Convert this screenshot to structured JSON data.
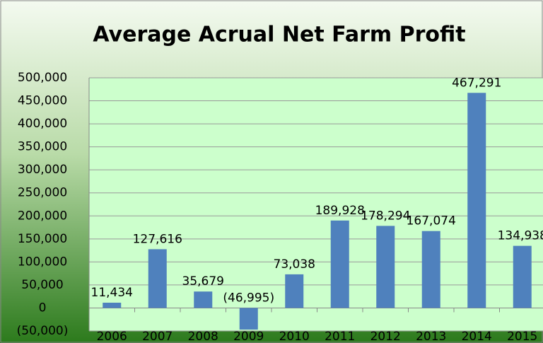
{
  "chart_data": {
    "type": "bar",
    "title": "Average Acrual Net Farm Profit",
    "categories": [
      "2006",
      "2007",
      "2008",
      "2009",
      "2010",
      "2011",
      "2012",
      "2013",
      "2014",
      "2015"
    ],
    "values": [
      11434,
      127616,
      35679,
      -46995,
      73038,
      189928,
      178294,
      167074,
      467291,
      134938
    ],
    "value_labels": [
      "11,434",
      "127,616",
      "35,679",
      "(46,995)",
      "73,038",
      "189,928",
      "178,294",
      "167,074",
      "467,291",
      "134,938"
    ],
    "color": "#4f81bd",
    "ylim": [
      -50000,
      500000
    ],
    "yticks": [
      {
        "value": -50000,
        "label": "(50,000)"
      },
      0,
      {
        "value": 50000,
        "label": "50,000"
      },
      {
        "value": 100000,
        "label": "100,000"
      },
      {
        "value": 150000,
        "label": "150,000"
      },
      {
        "value": 200000,
        "label": "200,000"
      },
      {
        "value": 250000,
        "label": "250,000"
      },
      {
        "value": 300000,
        "label": "300,000"
      },
      {
        "value": 350000,
        "label": "350,000"
      },
      {
        "value": 400000,
        "label": "400,000"
      },
      {
        "value": 450000,
        "label": "450,000"
      },
      {
        "value": 500000,
        "label": "500,000"
      }
    ],
    "grid": true
  }
}
